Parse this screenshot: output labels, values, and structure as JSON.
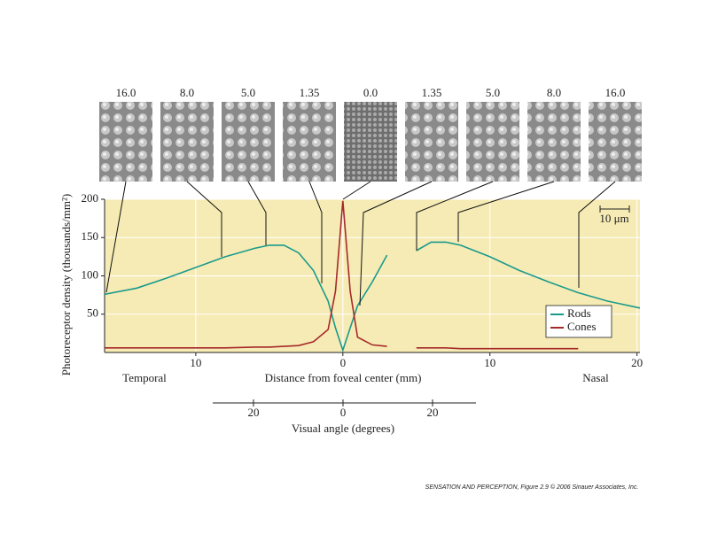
{
  "chart_data": {
    "type": "line",
    "xlabel": "Distance from foveal center (mm)",
    "ylabel": "Photoreceptor density (thousands/mm²)",
    "side_labels": [
      "Temporal",
      "Nasal"
    ],
    "sample_labels": [
      "16.0",
      "8.0",
      "5.0",
      "1.35",
      "0.0",
      "1.35",
      "5.0",
      "8.0",
      "16.0"
    ],
    "scale_bar": "10 μm",
    "x2label": "Visual angle (degrees)",
    "x": [
      -16.2,
      -14,
      -12,
      -10,
      -8,
      -6,
      -5,
      -4,
      -3,
      -2,
      -1,
      -0.5,
      0,
      0.5,
      1,
      2,
      3,
      4,
      5,
      6,
      7,
      8,
      10,
      12,
      14,
      16,
      18,
      20.2
    ],
    "series": [
      {
        "name": "Rods",
        "color": "#1a9a8c",
        "values": [
          76,
          84,
          97,
          111,
          125,
          136,
          140,
          140,
          130,
          107,
          67,
          32,
          3,
          32,
          61,
          92,
          127,
          null,
          133,
          144,
          144,
          140,
          125,
          107,
          92,
          78,
          67,
          58
        ]
      },
      {
        "name": "Cones",
        "color": "#a52a2a",
        "values": [
          6,
          6,
          6,
          6,
          6,
          7,
          7,
          8,
          9,
          14,
          30,
          80,
          198,
          80,
          20,
          10,
          8,
          null,
          6,
          6,
          6,
          5,
          5,
          5,
          5,
          5,
          null,
          null
        ]
      }
    ],
    "xlim": [
      -16.2,
      20.2
    ],
    "xticks": [
      {
        "value": -10,
        "label": "10"
      },
      0,
      10,
      20
    ],
    "ylim": [
      0,
      200
    ],
    "yticks": [
      50,
      100,
      150,
      200
    ],
    "x2lim": [
      -29.1,
      29.7
    ],
    "x2ticks": [
      {
        "value": -20,
        "label": "20"
      },
      0,
      20
    ],
    "grid": true,
    "background": "#f6ebb4",
    "legend": "lower right"
  },
  "footer": "SENSATION AND PERCEPTION, Figure 2.9 © 2006 Sinauer Associates, Inc."
}
